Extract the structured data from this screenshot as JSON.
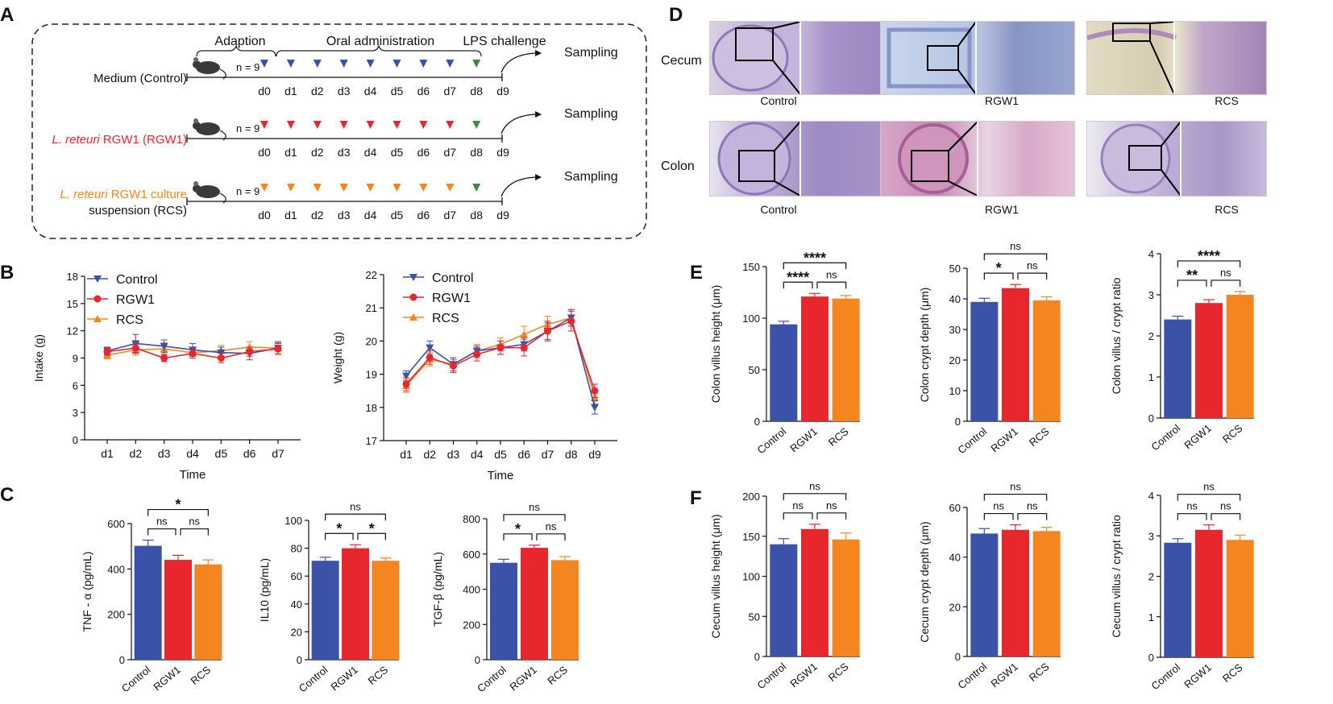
{
  "colors": {
    "control": "#3a52a8",
    "rgw1": "#e8262d",
    "rcs": "#f5861f",
    "lps": "#3d8a3a"
  },
  "panelA": {
    "label": "A",
    "phases": [
      "Adaption",
      "Oral administration",
      "LPS challenge"
    ],
    "groups": [
      {
        "name": "Medium (Control)",
        "color": "control",
        "n": "n = 9"
      },
      {
        "name_italic": "L. reteuri",
        "name_rest": " RGW1 (RGW1)",
        "color": "rgw1",
        "n": "n = 9"
      },
      {
        "name_italic": "L. reteuri",
        "name_rest": " RGW1 culture",
        "name_line2": "suspension (RCS)",
        "color": "rcs",
        "n": "n = 9"
      }
    ],
    "days": [
      "d0",
      "d1",
      "d2",
      "d3",
      "d4",
      "d5",
      "d6",
      "d7",
      "d8",
      "d9"
    ],
    "sampling": "Sampling"
  },
  "panelD": {
    "label": "D",
    "rows": [
      {
        "name": "Cecum",
        "captions": [
          "Control",
          "RGW1",
          "RCS"
        ]
      },
      {
        "name": "Colon",
        "captions": [
          "Control",
          "RGW1",
          "RCS"
        ]
      }
    ]
  },
  "panelB": {
    "label": "B"
  },
  "panelC": {
    "label": "C"
  },
  "panelE": {
    "label": "E"
  },
  "panelF": {
    "label": "F"
  },
  "chart_data": [
    {
      "id": "intake",
      "type": "line",
      "panel": "B",
      "xlabel": "Time",
      "ylabel": "Intake (g)",
      "ylim": [
        0,
        18
      ],
      "yticks": [
        0,
        3,
        6,
        9,
        12,
        15,
        18
      ],
      "categories": [
        "d1",
        "d2",
        "d3",
        "d4",
        "d5",
        "d6",
        "d7"
      ],
      "series": [
        {
          "name": "Control",
          "marker": "triangle-down",
          "values": [
            9.8,
            10.6,
            10.3,
            9.9,
            9.6,
            9.5,
            10.1
          ],
          "err": [
            0.4,
            1.0,
            0.7,
            0.7,
            0.6,
            0.7,
            0.7
          ]
        },
        {
          "name": "RGW1",
          "marker": "circle",
          "values": [
            9.7,
            10.1,
            9.0,
            9.5,
            9.0,
            9.7,
            10.0
          ],
          "err": [
            0.4,
            0.6,
            0.4,
            0.5,
            0.5,
            0.5,
            0.6
          ]
        },
        {
          "name": "RCS",
          "marker": "triangle-up",
          "values": [
            9.3,
            9.9,
            10.0,
            9.6,
            9.8,
            10.2,
            10.1
          ],
          "err": [
            0.4,
            0.6,
            0.7,
            0.6,
            0.6,
            0.6,
            0.6
          ]
        }
      ]
    },
    {
      "id": "weight",
      "type": "line",
      "panel": "B",
      "xlabel": "Time",
      "ylabel": "Weight (g)",
      "ylim": [
        17,
        22
      ],
      "yticks": [
        17,
        18,
        19,
        20,
        21,
        22
      ],
      "categories": [
        "d1",
        "d2",
        "d3",
        "d4",
        "d5",
        "d6",
        "d7",
        "d8",
        "d9"
      ],
      "series": [
        {
          "name": "Control",
          "marker": "triangle-down",
          "values": [
            18.95,
            19.8,
            19.3,
            19.7,
            19.8,
            19.9,
            20.3,
            20.7,
            18.0
          ],
          "err": [
            0.15,
            0.2,
            0.2,
            0.15,
            0.2,
            0.2,
            0.25,
            0.25,
            0.2
          ]
        },
        {
          "name": "RGW1",
          "marker": "circle",
          "values": [
            18.7,
            19.5,
            19.25,
            19.6,
            19.8,
            19.8,
            20.3,
            20.6,
            18.5
          ],
          "err": [
            0.2,
            0.2,
            0.2,
            0.2,
            0.2,
            0.25,
            0.3,
            0.3,
            0.2
          ]
        },
        {
          "name": "RCS",
          "marker": "triangle-up",
          "values": [
            18.65,
            19.45,
            19.3,
            19.7,
            19.9,
            20.2,
            20.5,
            20.7,
            18.3
          ],
          "err": [
            0.2,
            0.2,
            0.2,
            0.2,
            0.2,
            0.25,
            0.25,
            0.25,
            0.2
          ]
        }
      ]
    },
    {
      "id": "tnf",
      "type": "bar",
      "panel": "C",
      "ylabel": "TNF - α  (pg/mL)",
      "ylim": [
        0,
        600
      ],
      "yticks": [
        0,
        200,
        400,
        600
      ],
      "categories": [
        "Control",
        "RGW1",
        "RCS"
      ],
      "values": [
        502,
        440,
        420
      ],
      "err": [
        25,
        20,
        20
      ],
      "sig": [
        {
          "a": 0,
          "b": 1,
          "t": "ns",
          "lvl": 0
        },
        {
          "a": 1,
          "b": 2,
          "t": "ns",
          "lvl": 0
        },
        {
          "a": 0,
          "b": 2,
          "t": "*",
          "lvl": 1
        }
      ]
    },
    {
      "id": "il10",
      "type": "bar",
      "panel": "C",
      "ylabel": "IL10  (pg/mL)",
      "ylim": [
        0,
        100
      ],
      "yticks": [
        0,
        20,
        40,
        60,
        80,
        100
      ],
      "categories": [
        "Control",
        "RGW1",
        "RCS"
      ],
      "values": [
        71,
        80,
        71
      ],
      "err": [
        2.5,
        2.5,
        2
      ],
      "sig": [
        {
          "a": 0,
          "b": 1,
          "t": "*",
          "lvl": 0
        },
        {
          "a": 1,
          "b": 2,
          "t": "*",
          "lvl": 0
        },
        {
          "a": 0,
          "b": 2,
          "t": "ns",
          "lvl": 1
        }
      ]
    },
    {
      "id": "tgf",
      "type": "bar",
      "panel": "C",
      "ylabel": "TGF-β  (pg/mL)",
      "ylim": [
        0,
        800
      ],
      "yticks": [
        0,
        200,
        400,
        600,
        800
      ],
      "categories": [
        "Control",
        "RGW1",
        "RCS"
      ],
      "values": [
        550,
        635,
        565
      ],
      "err": [
        20,
        15,
        20
      ],
      "sig": [
        {
          "a": 0,
          "b": 1,
          "t": "*",
          "lvl": 0
        },
        {
          "a": 1,
          "b": 2,
          "t": "ns",
          "lvl": 0
        },
        {
          "a": 0,
          "b": 2,
          "t": "ns",
          "lvl": 1
        }
      ]
    },
    {
      "id": "colon_villus",
      "type": "bar",
      "panel": "E",
      "ylabel": "Colon villus height  (μm)",
      "ylim": [
        0,
        150
      ],
      "yticks": [
        0,
        50,
        100,
        150
      ],
      "categories": [
        "Control",
        "RGW1",
        "RCS"
      ],
      "values": [
        94,
        121,
        119
      ],
      "err": [
        3,
        3,
        3
      ],
      "sig": [
        {
          "a": 0,
          "b": 1,
          "t": "****",
          "lvl": 0
        },
        {
          "a": 1,
          "b": 2,
          "t": "ns",
          "lvl": 0
        },
        {
          "a": 0,
          "b": 2,
          "t": "****",
          "lvl": 1
        }
      ]
    },
    {
      "id": "colon_crypt",
      "type": "bar",
      "panel": "E",
      "ylabel": "Colon crypt depth  (μm)",
      "ylim": [
        0,
        50
      ],
      "yticks": [
        0,
        10,
        20,
        30,
        40,
        50
      ],
      "categories": [
        "Control",
        "RGW1",
        "RCS"
      ],
      "values": [
        39,
        43.5,
        39.5
      ],
      "err": [
        1.2,
        1.2,
        1.2
      ],
      "sig": [
        {
          "a": 0,
          "b": 1,
          "t": "*",
          "lvl": 0
        },
        {
          "a": 1,
          "b": 2,
          "t": "ns",
          "lvl": 0
        },
        {
          "a": 0,
          "b": 2,
          "t": "ns",
          "lvl": 1
        }
      ]
    },
    {
      "id": "colon_ratio",
      "type": "bar",
      "panel": "E",
      "ylabel": "Colon villus / crypt ratio",
      "ylim": [
        0,
        4
      ],
      "yticks": [
        0,
        1,
        2,
        3,
        4
      ],
      "categories": [
        "Control",
        "RGW1",
        "RCS"
      ],
      "values": [
        2.4,
        2.8,
        3.0
      ],
      "err": [
        0.08,
        0.08,
        0.08
      ],
      "sig": [
        {
          "a": 0,
          "b": 1,
          "t": "**",
          "lvl": 0
        },
        {
          "a": 1,
          "b": 2,
          "t": "ns",
          "lvl": 0
        },
        {
          "a": 0,
          "b": 2,
          "t": "****",
          "lvl": 1
        }
      ]
    },
    {
      "id": "cecum_villus",
      "type": "bar",
      "panel": "F",
      "ylabel": "Cecum villus height  (μm)",
      "ylim": [
        0,
        200
      ],
      "yticks": [
        0,
        50,
        100,
        150,
        200
      ],
      "categories": [
        "Control",
        "RGW1",
        "RCS"
      ],
      "values": [
        140,
        159,
        146
      ],
      "err": [
        7,
        6,
        8
      ],
      "sig": [
        {
          "a": 0,
          "b": 1,
          "t": "ns",
          "lvl": 0
        },
        {
          "a": 1,
          "b": 2,
          "t": "ns",
          "lvl": 0
        },
        {
          "a": 0,
          "b": 2,
          "t": "ns",
          "lvl": 1
        }
      ]
    },
    {
      "id": "cecum_crypt",
      "type": "bar",
      "panel": "F",
      "ylabel": "Cecum crypt depth  (μm)",
      "ylim": [
        0,
        60
      ],
      "yticks": [
        0,
        20,
        40,
        60
      ],
      "categories": [
        "Control",
        "RGW1",
        "RCS"
      ],
      "values": [
        49.5,
        51,
        50.5
      ],
      "err": [
        2,
        2,
        1.5
      ],
      "sig": [
        {
          "a": 0,
          "b": 1,
          "t": "ns",
          "lvl": 0
        },
        {
          "a": 1,
          "b": 2,
          "t": "ns",
          "lvl": 0
        },
        {
          "a": 0,
          "b": 2,
          "t": "ns",
          "lvl": 1
        }
      ]
    },
    {
      "id": "cecum_ratio",
      "type": "bar",
      "panel": "F",
      "ylabel": "Cecum villus / crypt ratio",
      "ylim": [
        0,
        4
      ],
      "yticks": [
        0,
        1,
        2,
        3,
        4
      ],
      "categories": [
        "Control",
        "RGW1",
        "RCS"
      ],
      "values": [
        2.83,
        3.15,
        2.9
      ],
      "err": [
        0.1,
        0.12,
        0.12
      ],
      "sig": [
        {
          "a": 0,
          "b": 1,
          "t": "ns",
          "lvl": 0
        },
        {
          "a": 1,
          "b": 2,
          "t": "ns",
          "lvl": 0
        },
        {
          "a": 0,
          "b": 2,
          "t": "ns",
          "lvl": 1
        }
      ]
    }
  ]
}
